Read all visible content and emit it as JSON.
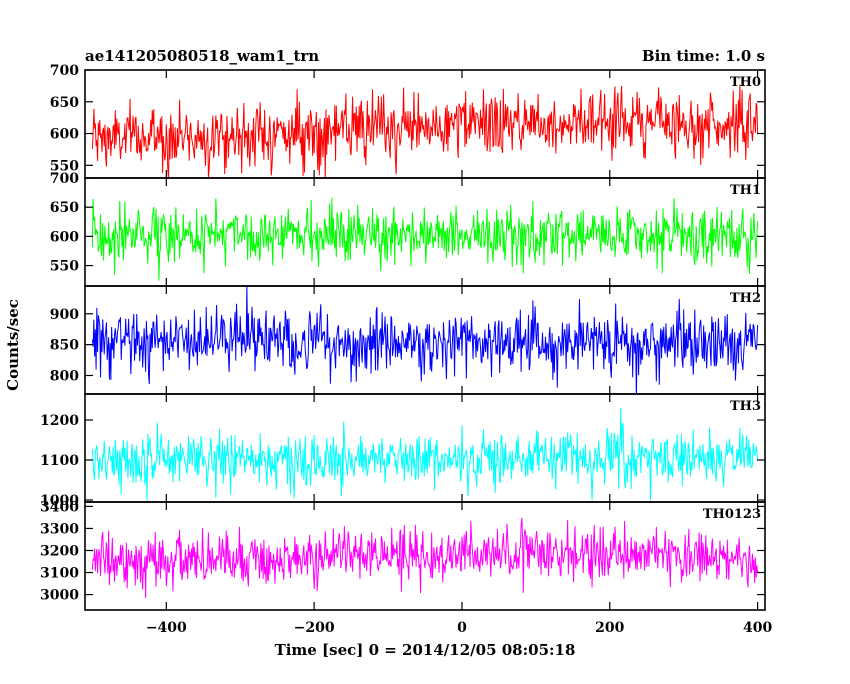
{
  "chart_data": {
    "type": "line",
    "title": "ae141205080518_wam1_trn",
    "subtitle": "Bin time: 1.0 s",
    "xlabel": "Time [sec] 0 = 2014/12/05 08:05:18",
    "ylabel": "Counts/sec",
    "xlim": [
      -510,
      410
    ],
    "xticks": [
      -400,
      -200,
      0,
      200,
      400
    ],
    "x_start": -500,
    "x_end": 400,
    "x_step": 1,
    "panels": [
      {
        "name": "TH0",
        "color": "#ff0000",
        "ylim": [
          530,
          700
        ],
        "yticks": [
          550,
          600,
          650,
          700
        ],
        "trend": [
          [
            -500,
            592
          ],
          [
            -300,
            597
          ],
          [
            -100,
            607
          ],
          [
            0,
            613
          ],
          [
            100,
            618
          ],
          [
            200,
            622
          ],
          [
            300,
            617
          ],
          [
            400,
            612
          ]
        ],
        "noise_sd": 25
      },
      {
        "name": "TH1",
        "color": "#00ff00",
        "ylim": [
          515,
          700
        ],
        "yticks": [
          550,
          600,
          650,
          700
        ],
        "trend": [
          [
            -500,
            603
          ],
          [
            -250,
            603
          ],
          [
            0,
            602
          ],
          [
            200,
            600
          ],
          [
            400,
            601
          ]
        ],
        "noise_sd": 24
      },
      {
        "name": "TH2",
        "color": "#0000ff",
        "ylim": [
          770,
          945
        ],
        "yticks": [
          800,
          850,
          900
        ],
        "trend": [
          [
            -500,
            858
          ],
          [
            -250,
            856
          ],
          [
            0,
            852
          ],
          [
            200,
            850
          ],
          [
            400,
            848
          ]
        ],
        "noise_sd": 26
      },
      {
        "name": "TH3",
        "color": "#00ffff",
        "ylim": [
          995,
          1265
        ],
        "yticks": [
          1000,
          1100,
          1200
        ],
        "trend": [
          [
            -500,
            1098
          ],
          [
            -250,
            1102
          ],
          [
            0,
            1108
          ],
          [
            200,
            1110
          ],
          [
            400,
            1105
          ]
        ],
        "noise_sd": 33
      },
      {
        "name": "TH0123",
        "color": "#ff00ff",
        "ylim": [
          2930,
          3420
        ],
        "yticks": [
          3000,
          3100,
          3200,
          3300,
          3400
        ],
        "trend": [
          [
            -500,
            3148
          ],
          [
            -250,
            3160
          ],
          [
            0,
            3185
          ],
          [
            100,
            3195
          ],
          [
            200,
            3185
          ],
          [
            400,
            3160
          ]
        ],
        "noise_sd": 62
      }
    ]
  }
}
